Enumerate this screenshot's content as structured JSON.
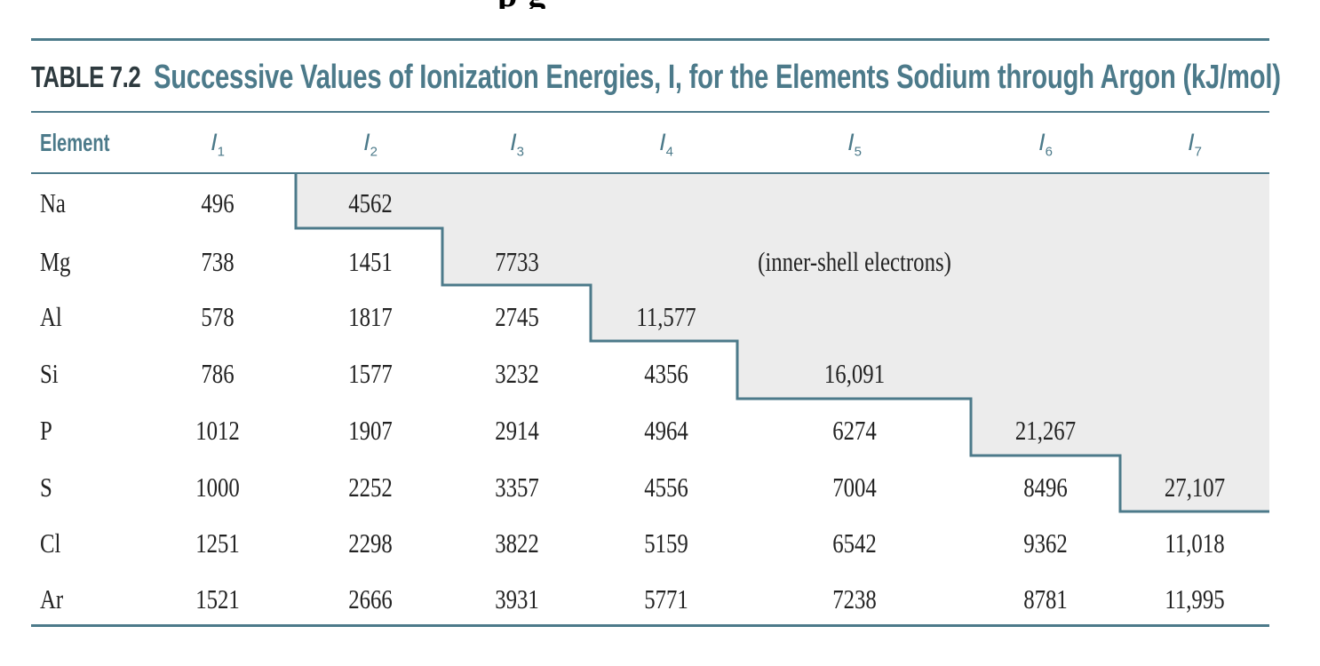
{
  "heading_fragment": "p                                              g",
  "table": {
    "number": "TABLE 7.2",
    "title": "Successive Values of Ionization Energies, I, for the Elements Sodium through Argon (kJ/mol)",
    "headers": {
      "element": "Element",
      "i_symbol": "I",
      "subscripts": [
        "1",
        "2",
        "3",
        "4",
        "5",
        "6",
        "7"
      ]
    },
    "note": "(inner-shell electrons)",
    "rows": [
      {
        "element": "Na",
        "values": [
          "496",
          "4562",
          "",
          "",
          "",
          "",
          ""
        ]
      },
      {
        "element": "Mg",
        "values": [
          "738",
          "1451",
          "7733",
          "",
          "",
          "",
          ""
        ]
      },
      {
        "element": "Al",
        "values": [
          "578",
          "1817",
          "2745",
          "11,577",
          "",
          "",
          ""
        ]
      },
      {
        "element": "Si",
        "values": [
          "786",
          "1577",
          "3232",
          "4356",
          "16,091",
          "",
          ""
        ]
      },
      {
        "element": "P",
        "values": [
          "1012",
          "1907",
          "2914",
          "4964",
          "6274",
          "21,267",
          ""
        ]
      },
      {
        "element": "S",
        "values": [
          "1000",
          "2252",
          "3357",
          "4556",
          "7004",
          "8496",
          "27,107"
        ]
      },
      {
        "element": "Cl",
        "values": [
          "1251",
          "2298",
          "3822",
          "5159",
          "6542",
          "9362",
          "11,018"
        ]
      },
      {
        "element": "Ar",
        "values": [
          "1521",
          "2666",
          "3931",
          "5771",
          "7238",
          "8781",
          "11,995"
        ]
      }
    ],
    "colors": {
      "accent": "#4c7a8a",
      "shade": "#ececec",
      "text": "#222222"
    }
  }
}
